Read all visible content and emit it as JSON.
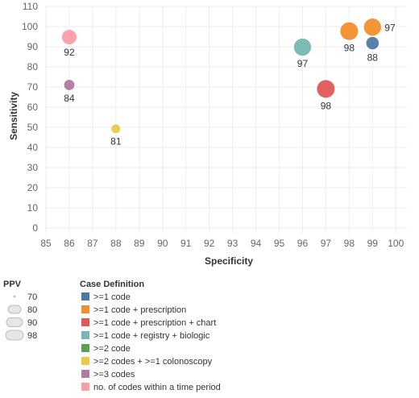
{
  "chart_data": {
    "type": "scatter",
    "xlabel": "Specificity",
    "ylabel": "Sensitivity",
    "xlim": [
      85,
      100
    ],
    "ylim": [
      0,
      110
    ],
    "x_ticks": [
      85,
      86,
      87,
      88,
      89,
      90,
      91,
      92,
      93,
      94,
      95,
      96,
      97,
      98,
      99,
      100
    ],
    "y_ticks": [
      0,
      10,
      20,
      30,
      40,
      50,
      60,
      70,
      80,
      90,
      100,
      110
    ],
    "grid": true,
    "size_variable": "PPV",
    "points": [
      {
        "category": ">=1 code",
        "specificity": 99,
        "sensitivity": 92,
        "ppv": 88,
        "color": "#4E79A7"
      },
      {
        "category": ">=1 code + prescription",
        "specificity": 98,
        "sensitivity": 98,
        "ppv": 98,
        "color": "#F28E2B"
      },
      {
        "category": ">=1 code + prescription",
        "specificity": 99,
        "sensitivity": 100,
        "ppv": 97,
        "color": "#F28E2B"
      },
      {
        "category": ">=1 code + prescription + chart",
        "specificity": 97,
        "sensitivity": 69,
        "ppv": 98,
        "color": "#E15759"
      },
      {
        "category": ">=1 code + registry + biologic",
        "specificity": 96,
        "sensitivity": 90,
        "ppv": 97,
        "color": "#76B7B2"
      },
      {
        "category": ">=2 codes + >=1 colonoscopy",
        "specificity": 88,
        "sensitivity": 49,
        "ppv": 81,
        "color": "#EDC948"
      },
      {
        "category": ">=3 codes",
        "specificity": 86,
        "sensitivity": 71,
        "ppv": 84,
        "color": "#B07AA1"
      },
      {
        "category": "no. of codes within a time period",
        "specificity": 86,
        "sensitivity": 95,
        "ppv": 92,
        "color": "#FF9DA7"
      }
    ],
    "size_legend": {
      "title": "PPV",
      "values": [
        70,
        80,
        90,
        98
      ]
    },
    "color_legend": {
      "title": "Case Definition",
      "items": [
        {
          "label": ">=1 code",
          "color": "#4E79A7"
        },
        {
          "label": ">=1 code + prescription",
          "color": "#F28E2B"
        },
        {
          "label": ">=1 code + prescription + chart",
          "color": "#E15759"
        },
        {
          "label": ">=1 code + registry + biologic",
          "color": "#76B7B2"
        },
        {
          "label": ">=2 code",
          "color": "#59A14F"
        },
        {
          "label": ">=2 codes + >=1 colonoscopy",
          "color": "#EDC948"
        },
        {
          "label": ">=3 codes",
          "color": "#B07AA1"
        },
        {
          "label": "no. of codes within a time period",
          "color": "#FF9DA7"
        }
      ]
    }
  }
}
